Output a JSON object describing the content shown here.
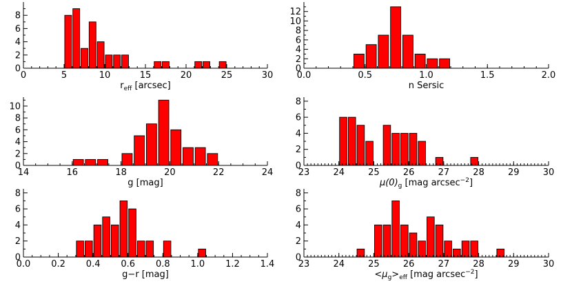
{
  "colors": {
    "bar_fill": "#ff0000",
    "bar_edge": "#000000",
    "axis": "#000000"
  },
  "chart_data": [
    {
      "type": "bar",
      "id": "reff",
      "xlabel_main": "r",
      "xlabel_sub": "eff",
      "xlabel_tail": " [arcsec]",
      "xlim": [
        0,
        30
      ],
      "ylim": [
        0,
        10
      ],
      "xticks": [
        0,
        5,
        10,
        15,
        20,
        25,
        30
      ],
      "xtick_labels": [
        "0",
        "5",
        "10",
        "15",
        "20",
        "25",
        "30"
      ],
      "yticks": [
        0,
        2,
        4,
        6,
        8
      ],
      "ytick_labels": [
        "0",
        "2",
        "4",
        "6",
        "8"
      ],
      "minor_x_step": 1,
      "bins": [
        {
          "x0": 5.0,
          "x1": 6.0,
          "value": 8
        },
        {
          "x0": 6.0,
          "x1": 7.0,
          "value": 9
        },
        {
          "x0": 7.0,
          "x1": 8.0,
          "value": 3
        },
        {
          "x0": 8.0,
          "x1": 9.0,
          "value": 7
        },
        {
          "x0": 9.0,
          "x1": 10.0,
          "value": 4
        },
        {
          "x0": 10.0,
          "x1": 11.0,
          "value": 2
        },
        {
          "x0": 11.0,
          "x1": 12.0,
          "value": 2
        },
        {
          "x0": 12.0,
          "x1": 13.0,
          "value": 2
        },
        {
          "x0": 16.0,
          "x1": 17.0,
          "value": 1
        },
        {
          "x0": 17.0,
          "x1": 18.0,
          "value": 1
        },
        {
          "x0": 21.0,
          "x1": 22.0,
          "value": 1
        },
        {
          "x0": 22.0,
          "x1": 23.0,
          "value": 1
        },
        {
          "x0": 24.0,
          "x1": 25.0,
          "value": 1
        }
      ]
    },
    {
      "type": "bar",
      "id": "nsersic",
      "xlabel_main": "n Sersic",
      "xlabel_sub": "",
      "xlabel_tail": "",
      "xlim": [
        0,
        2
      ],
      "ylim": [
        0,
        14
      ],
      "xticks": [
        0,
        0.5,
        1.0,
        1.5,
        2.0
      ],
      "xtick_labels": [
        "0.0",
        "0.5",
        "1.0",
        "1.5",
        "2.0"
      ],
      "yticks": [
        0,
        2,
        4,
        6,
        8,
        10,
        12
      ],
      "ytick_labels": [
        "0",
        "2",
        "4",
        "6",
        "8",
        "10",
        "12"
      ],
      "minor_x_step": 0.1,
      "bins": [
        {
          "x0": 0.4,
          "x1": 0.5,
          "value": 3
        },
        {
          "x0": 0.5,
          "x1": 0.6,
          "value": 5
        },
        {
          "x0": 0.6,
          "x1": 0.7,
          "value": 7
        },
        {
          "x0": 0.7,
          "x1": 0.8,
          "value": 13
        },
        {
          "x0": 0.8,
          "x1": 0.9,
          "value": 7
        },
        {
          "x0": 0.9,
          "x1": 1.0,
          "value": 3
        },
        {
          "x0": 1.0,
          "x1": 1.1,
          "value": 2
        },
        {
          "x0": 1.1,
          "x1": 1.2,
          "value": 2
        }
      ]
    },
    {
      "type": "bar",
      "id": "gmag",
      "xlabel_main": "g [mag]",
      "xlabel_sub": "",
      "xlabel_tail": "",
      "xlim": [
        14,
        24
      ],
      "ylim": [
        0,
        11.5
      ],
      "xticks": [
        14,
        16,
        18,
        20,
        22,
        24
      ],
      "xtick_labels": [
        "14",
        "16",
        "18",
        "20",
        "22",
        "24"
      ],
      "yticks": [
        0,
        2,
        4,
        6,
        8,
        10
      ],
      "ytick_labels": [
        "0",
        "2",
        "4",
        "6",
        "8",
        "10"
      ],
      "minor_x_step": 0.5,
      "bins": [
        {
          "x0": 16.0,
          "x1": 16.5,
          "value": 1
        },
        {
          "x0": 16.5,
          "x1": 17.0,
          "value": 1
        },
        {
          "x0": 17.0,
          "x1": 17.5,
          "value": 1
        },
        {
          "x0": 18.0,
          "x1": 18.5,
          "value": 2
        },
        {
          "x0": 18.5,
          "x1": 19.0,
          "value": 5
        },
        {
          "x0": 19.0,
          "x1": 19.5,
          "value": 7
        },
        {
          "x0": 19.5,
          "x1": 20.0,
          "value": 11
        },
        {
          "x0": 20.0,
          "x1": 20.5,
          "value": 6
        },
        {
          "x0": 20.5,
          "x1": 21.0,
          "value": 3
        },
        {
          "x0": 21.0,
          "x1": 21.5,
          "value": 3
        },
        {
          "x0": 21.5,
          "x1": 22.0,
          "value": 2
        }
      ]
    },
    {
      "type": "bar",
      "id": "mu0g",
      "xlabel_main": "μ(0)",
      "xlabel_sub": "g",
      "xlabel_tail": " [mag arcsec",
      "xlabel_sup": "−2",
      "xlabel_end": "]",
      "xlim": [
        23,
        30
      ],
      "ylim": [
        0,
        8.5
      ],
      "xticks": [
        23,
        24,
        25,
        26,
        27,
        28,
        29,
        30
      ],
      "xtick_labels": [
        "23",
        "24",
        "25",
        "26",
        "27",
        "28",
        "29",
        "30"
      ],
      "yticks": [
        0,
        2,
        4,
        6,
        8
      ],
      "ytick_labels": [
        "0",
        "2",
        "4",
        "6",
        "8"
      ],
      "minor_x_step": 0.1,
      "bins": [
        {
          "x0": 24.0,
          "x1": 24.25,
          "value": 6
        },
        {
          "x0": 24.25,
          "x1": 24.5,
          "value": 6
        },
        {
          "x0": 24.5,
          "x1": 24.75,
          "value": 5
        },
        {
          "x0": 24.75,
          "x1": 25.0,
          "value": 3
        },
        {
          "x0": 25.25,
          "x1": 25.5,
          "value": 5
        },
        {
          "x0": 25.5,
          "x1": 25.75,
          "value": 4
        },
        {
          "x0": 25.75,
          "x1": 26.0,
          "value": 4
        },
        {
          "x0": 26.0,
          "x1": 26.25,
          "value": 4
        },
        {
          "x0": 26.25,
          "x1": 26.5,
          "value": 3
        },
        {
          "x0": 26.75,
          "x1": 27.0,
          "value": 1
        },
        {
          "x0": 27.75,
          "x1": 28.0,
          "value": 1
        }
      ]
    },
    {
      "type": "bar",
      "id": "gminusr",
      "xlabel_main": "g−r [mag]",
      "xlabel_sub": "",
      "xlabel_tail": "",
      "xlim": [
        0,
        1.4
      ],
      "ylim": [
        0,
        8.5
      ],
      "xticks": [
        0,
        0.2,
        0.4,
        0.6,
        0.8,
        1.0,
        1.2,
        1.4
      ],
      "xtick_labels": [
        "0.0",
        "0.2",
        "0.4",
        "0.6",
        "0.8",
        "1.0",
        "1.2",
        "1.4"
      ],
      "yticks": [
        0,
        2,
        4,
        6,
        8
      ],
      "ytick_labels": [
        "0",
        "2",
        "4",
        "6",
        "8"
      ],
      "minor_x_step": 0.05,
      "bins": [
        {
          "x0": 0.3,
          "x1": 0.35,
          "value": 2
        },
        {
          "x0": 0.35,
          "x1": 0.4,
          "value": 2
        },
        {
          "x0": 0.4,
          "x1": 0.45,
          "value": 4
        },
        {
          "x0": 0.45,
          "x1": 0.5,
          "value": 5
        },
        {
          "x0": 0.5,
          "x1": 0.55,
          "value": 4
        },
        {
          "x0": 0.55,
          "x1": 0.6,
          "value": 7
        },
        {
          "x0": 0.6,
          "x1": 0.65,
          "value": 6
        },
        {
          "x0": 0.65,
          "x1": 0.7,
          "value": 2
        },
        {
          "x0": 0.7,
          "x1": 0.75,
          "value": 2
        },
        {
          "x0": 0.8,
          "x1": 0.85,
          "value": 2
        },
        {
          "x0": 1.0,
          "x1": 1.05,
          "value": 1
        }
      ]
    },
    {
      "type": "bar",
      "id": "mugeff",
      "xlabel_main": "<μ",
      "xlabel_sub": "g",
      "xlabel_tail": ">",
      "xlabel_sub2": "eff",
      "xlabel_tail2": " [mag arcsec",
      "xlabel_sup": "−2",
      "xlabel_end": "]",
      "xlim": [
        23,
        30
      ],
      "ylim": [
        0,
        8.5
      ],
      "xticks": [
        23,
        24,
        25,
        26,
        27,
        28,
        29,
        30
      ],
      "xtick_labels": [
        "23",
        "24",
        "25",
        "26",
        "27",
        "28",
        "29",
        "30"
      ],
      "yticks": [
        0,
        2,
        4,
        6,
        8
      ],
      "ytick_labels": [
        "0",
        "2",
        "4",
        "6",
        "8"
      ],
      "minor_x_step": 0.1,
      "bins": [
        {
          "x0": 24.5,
          "x1": 24.75,
          "value": 1
        },
        {
          "x0": 25.0,
          "x1": 25.25,
          "value": 4
        },
        {
          "x0": 25.25,
          "x1": 25.5,
          "value": 4
        },
        {
          "x0": 25.5,
          "x1": 25.75,
          "value": 7
        },
        {
          "x0": 25.75,
          "x1": 26.0,
          "value": 4
        },
        {
          "x0": 26.0,
          "x1": 26.25,
          "value": 3
        },
        {
          "x0": 26.25,
          "x1": 26.5,
          "value": 2
        },
        {
          "x0": 26.5,
          "x1": 26.75,
          "value": 5
        },
        {
          "x0": 26.75,
          "x1": 27.0,
          "value": 4
        },
        {
          "x0": 27.0,
          "x1": 27.25,
          "value": 2
        },
        {
          "x0": 27.25,
          "x1": 27.5,
          "value": 1
        },
        {
          "x0": 27.5,
          "x1": 27.75,
          "value": 2
        },
        {
          "x0": 27.75,
          "x1": 28.0,
          "value": 2
        },
        {
          "x0": 28.5,
          "x1": 28.75,
          "value": 1
        }
      ]
    }
  ]
}
